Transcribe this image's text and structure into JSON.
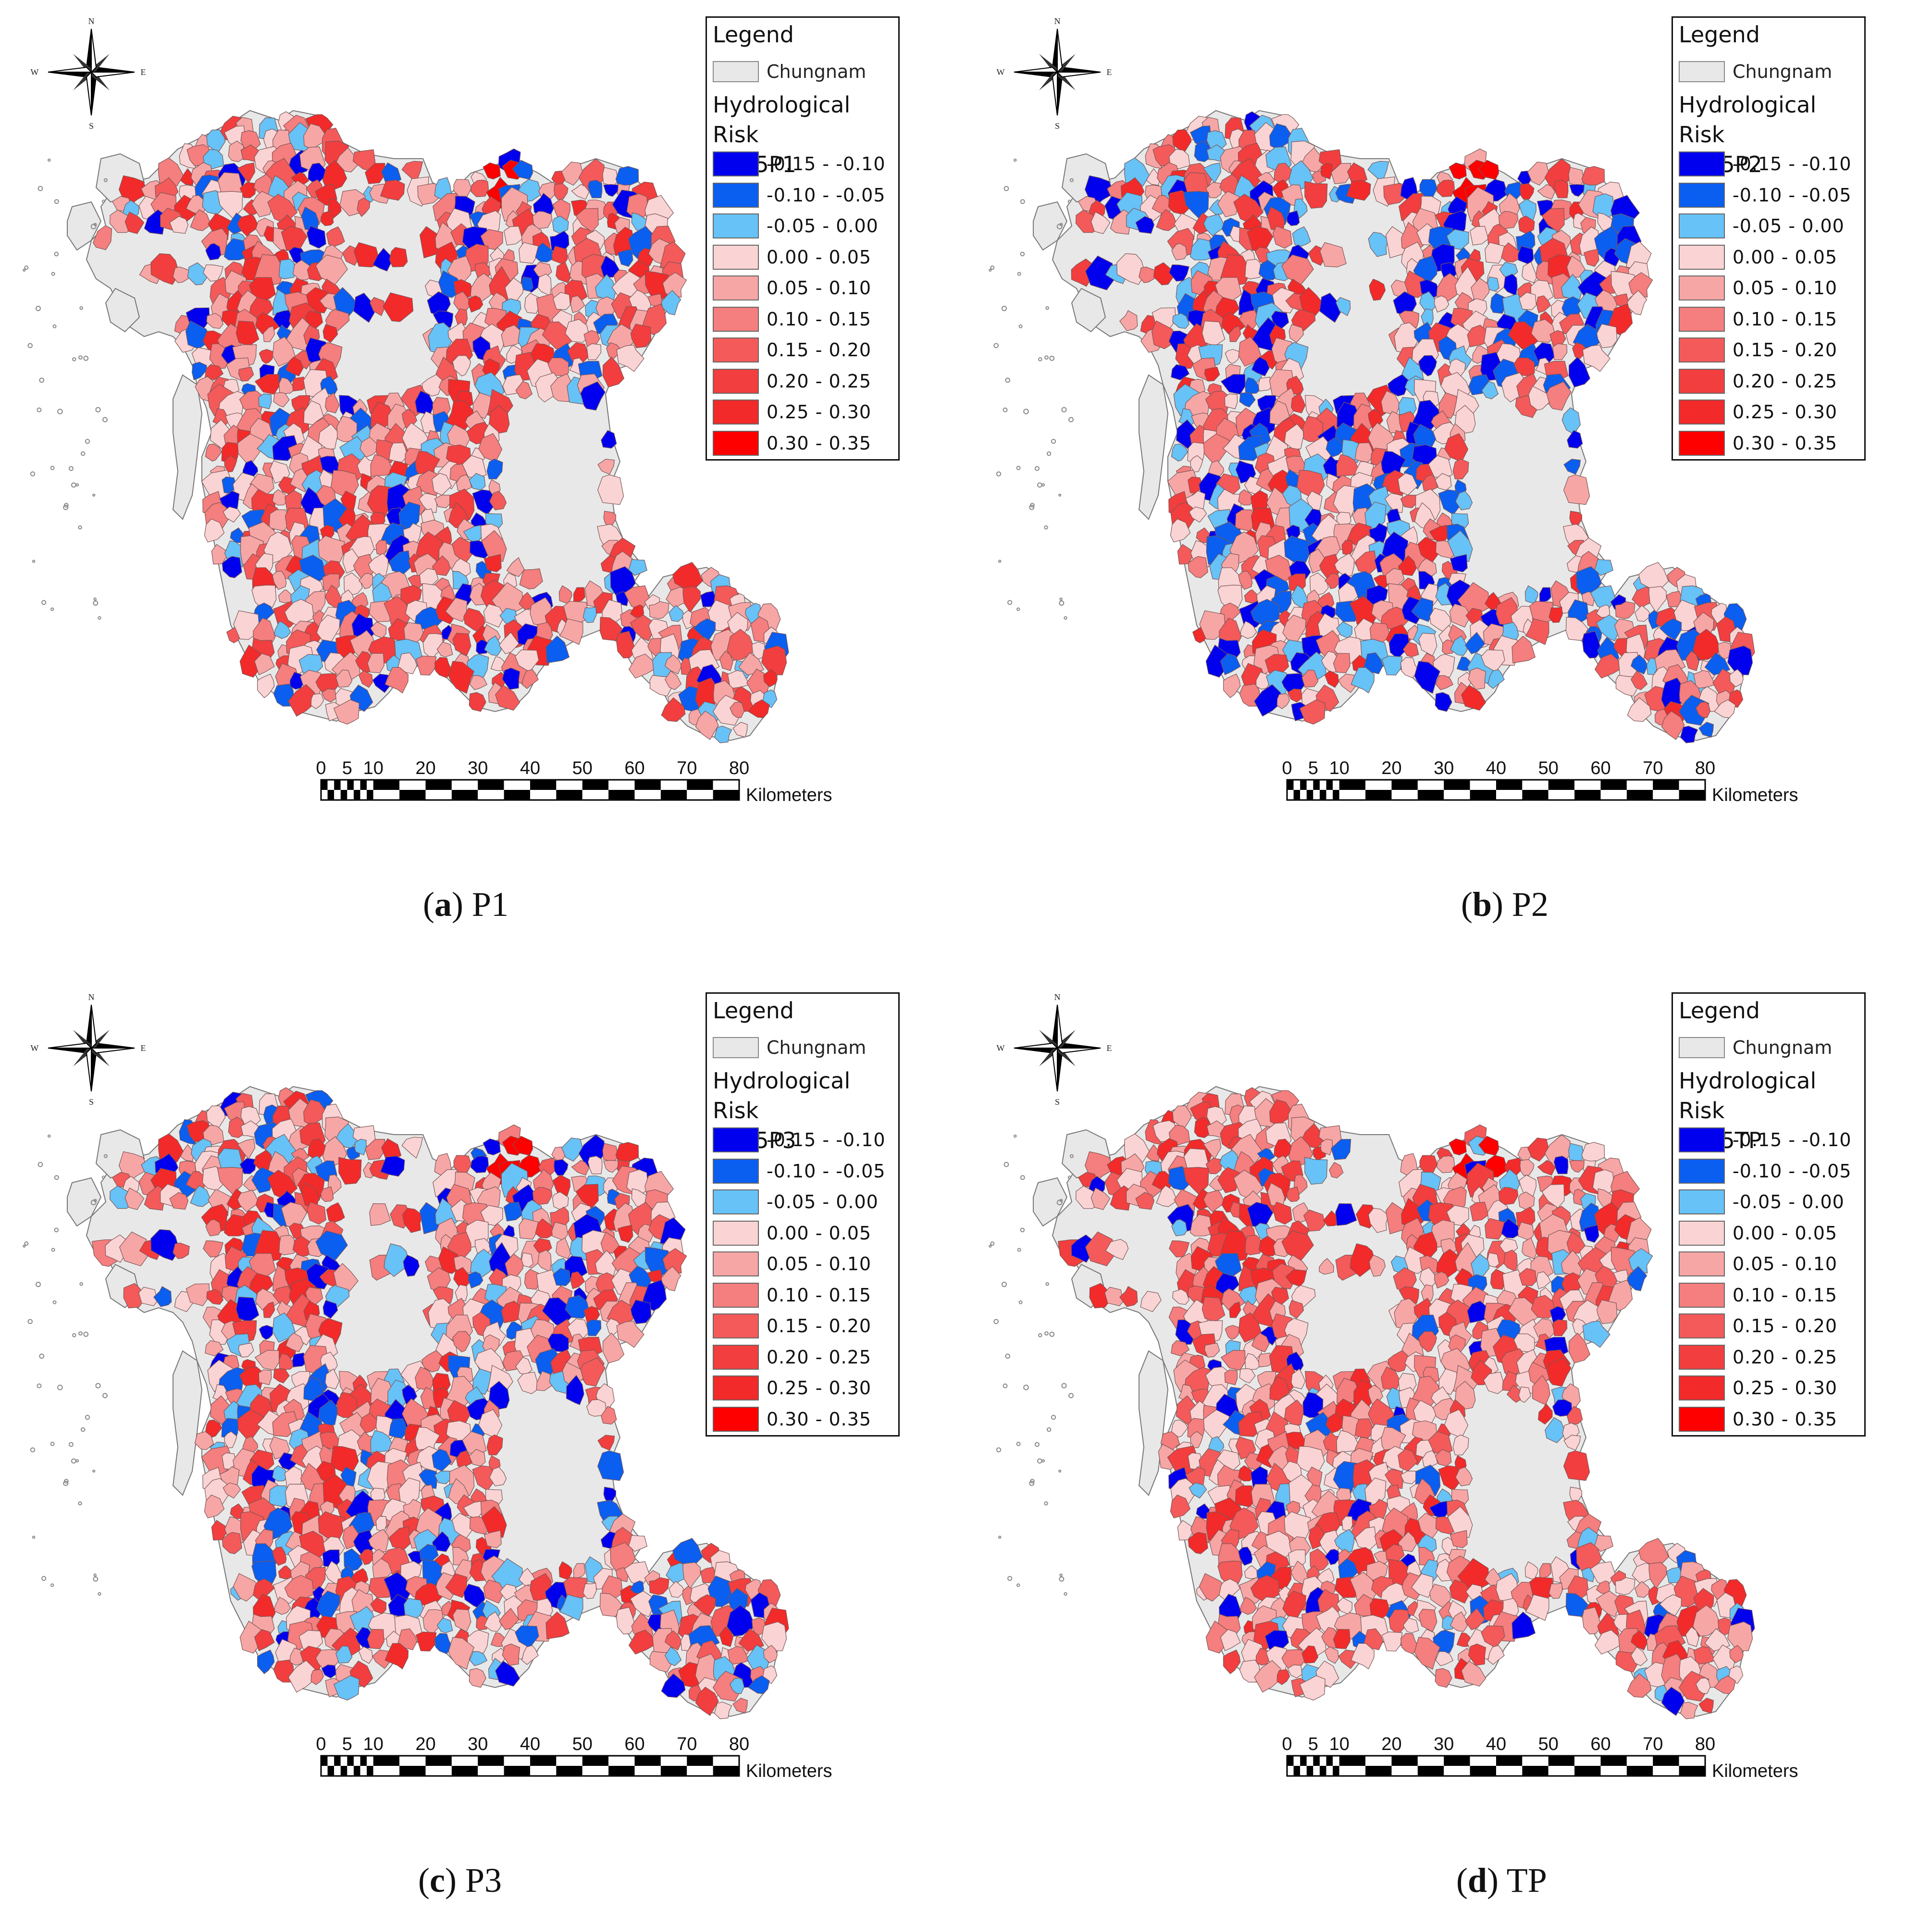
{
  "legend": {
    "title": "Legend",
    "region_label": "Chungnam",
    "risk_label": "Hydrological Risk",
    "classes": [
      {
        "label": "-0.15 - -0.10",
        "color": "#0000ee"
      },
      {
        "label": "-0.10 - -0.05",
        "color": "#0a5ef0"
      },
      {
        "label": "-0.05 - 0.00",
        "color": "#66c2f7"
      },
      {
        "label": "0.00 - 0.05",
        "color": "#fad4d4"
      },
      {
        "label": "0.05 - 0.10",
        "color": "#f7a6a6"
      },
      {
        "label": "0.10 - 0.15",
        "color": "#f57e7e"
      },
      {
        "label": "0.15 - 0.20",
        "color": "#f45a5a"
      },
      {
        "label": "0.20 - 0.25",
        "color": "#f23e3e"
      },
      {
        "label": "0.25 - 0.30",
        "color": "#f22a2a"
      },
      {
        "label": "0.30 - 0.35",
        "color": "#ff0000"
      }
    ]
  },
  "compass": {
    "n": "N",
    "s": "S",
    "e": "E",
    "w": "W"
  },
  "scalebar": {
    "ticks": [
      "0",
      "5",
      "10",
      "20",
      "30",
      "40",
      "50",
      "60",
      "70",
      "80"
    ],
    "unit": "Kilometers"
  },
  "panels": [
    {
      "layer": "ES85P1",
      "caption_letter": "a",
      "caption_text": "P1"
    },
    {
      "layer": "ES85P2",
      "caption_letter": "b",
      "caption_text": "P2"
    },
    {
      "layer": "ES85P3",
      "caption_letter": "c",
      "caption_text": "P3"
    },
    {
      "layer": "ES85TP",
      "caption_letter": "d",
      "caption_text": "TP"
    }
  ]
}
